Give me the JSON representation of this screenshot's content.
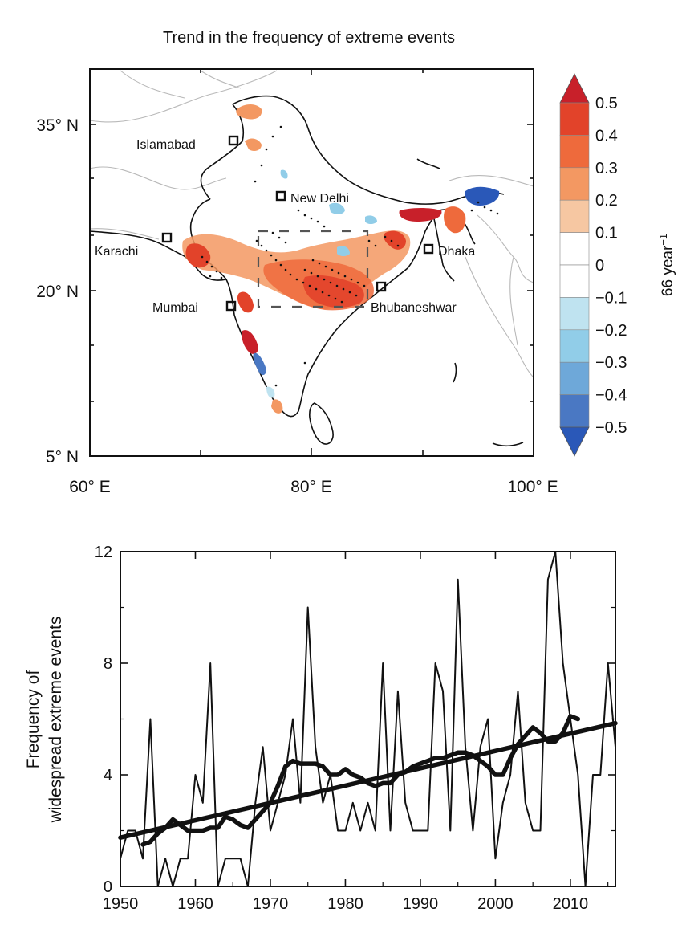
{
  "map_panel": {
    "title": "Trend in the frequency of extreme events",
    "lat_labels": [
      "35° N",
      "20° N",
      "5° N"
    ],
    "lon_labels": [
      "60° E",
      "80° E",
      "100° E"
    ],
    "colorbar": {
      "unit": "66 year",
      "unit_exp": "−1",
      "ticks": [
        "0.5",
        "0.4",
        "0.3",
        "0.2",
        "0.1",
        "0",
        "−0.1",
        "−0.2",
        "−0.3",
        "−0.4",
        "−0.5"
      ],
      "colors": [
        "#c8202a",
        "#e2432a",
        "#ee6a3c",
        "#f39862",
        "#f6c7a2",
        "#ffffff",
        "#ffffff",
        "#bfe3f0",
        "#91cde8",
        "#6ea8d9",
        "#4a78c3",
        "#2a58b8"
      ]
    },
    "cities": [
      {
        "name": "Islamabad"
      },
      {
        "name": "New Delhi"
      },
      {
        "name": "Karachi"
      },
      {
        "name": "Dhaka"
      },
      {
        "name": "Mumbai"
      },
      {
        "name": "Bhubaneshwar"
      }
    ]
  },
  "chart_data": {
    "type": "line",
    "ylabel_line1": "Frequency of",
    "ylabel_line2": "widespread extreme events",
    "xlim": [
      1950,
      2016
    ],
    "ylim": [
      0,
      12
    ],
    "x_ticks": [
      1950,
      1960,
      1970,
      1980,
      1990,
      2000,
      2010
    ],
    "y_ticks": [
      0,
      4,
      8,
      12
    ],
    "series": [
      {
        "style": "thin",
        "x": [
          1950,
          1951,
          1952,
          1953,
          1954,
          1955,
          1956,
          1957,
          1958,
          1959,
          1960,
          1961,
          1962,
          1963,
          1964,
          1965,
          1966,
          1967,
          1968,
          1969,
          1970,
          1971,
          1972,
          1973,
          1974,
          1975,
          1976,
          1977,
          1978,
          1979,
          1980,
          1981,
          1982,
          1983,
          1984,
          1985,
          1986,
          1987,
          1988,
          1989,
          1990,
          1991,
          1992,
          1993,
          1994,
          1995,
          1996,
          1997,
          1998,
          1999,
          2000,
          2001,
          2002,
          2003,
          2004,
          2005,
          2006,
          2007,
          2008,
          2009,
          2010,
          2011,
          2012,
          2013,
          2014,
          2015,
          2016
        ],
        "values": [
          1,
          2,
          2,
          1,
          6,
          0,
          1,
          0,
          1,
          1,
          4,
          3,
          8,
          0,
          1,
          1,
          1,
          0,
          3,
          5,
          2,
          3,
          4,
          6,
          3,
          10,
          5,
          3,
          4,
          2,
          2,
          3,
          2,
          3,
          2,
          8,
          2,
          7,
          3,
          2,
          2,
          2,
          8,
          7,
          2,
          11,
          5,
          2,
          5,
          6,
          1,
          3,
          4,
          7,
          3,
          2,
          2,
          11,
          12,
          8,
          6,
          4,
          0,
          4,
          4,
          8,
          5
        ]
      },
      {
        "style": "smoothed",
        "x": [
          1953,
          1954,
          1955,
          1956,
          1957,
          1958,
          1959,
          1960,
          1961,
          1962,
          1963,
          1964,
          1965,
          1966,
          1967,
          1968,
          1969,
          1970,
          1971,
          1972,
          1973,
          1974,
          1975,
          1976,
          1977,
          1978,
          1979,
          1980,
          1981,
          1982,
          1983,
          1984,
          1985,
          1986,
          1987,
          1988,
          1989,
          1990,
          1991,
          1992,
          1993,
          1994,
          1995,
          1996,
          1997,
          1998,
          1999,
          2000,
          2001,
          2002,
          2003,
          2004,
          2005,
          2006,
          2007,
          2008,
          2009,
          2010,
          2011
        ],
        "values": [
          1.5,
          1.6,
          1.9,
          2.1,
          2.4,
          2.2,
          2.0,
          2.0,
          2.0,
          2.1,
          2.1,
          2.5,
          2.4,
          2.2,
          2.1,
          2.4,
          2.7,
          3.0,
          3.6,
          4.3,
          4.5,
          4.4,
          4.4,
          4.4,
          4.3,
          4.0,
          4.0,
          4.2,
          4.0,
          3.9,
          3.7,
          3.6,
          3.7,
          3.7,
          4.0,
          4.1,
          4.3,
          4.4,
          4.5,
          4.6,
          4.6,
          4.7,
          4.8,
          4.8,
          4.7,
          4.5,
          4.3,
          4.0,
          4.0,
          4.6,
          5.1,
          5.4,
          5.7,
          5.5,
          5.2,
          5.2,
          5.5,
          6.1,
          6.0
        ]
      },
      {
        "style": "trend",
        "x": [
          1950,
          2016
        ],
        "values": [
          1.75,
          5.85
        ]
      }
    ]
  }
}
